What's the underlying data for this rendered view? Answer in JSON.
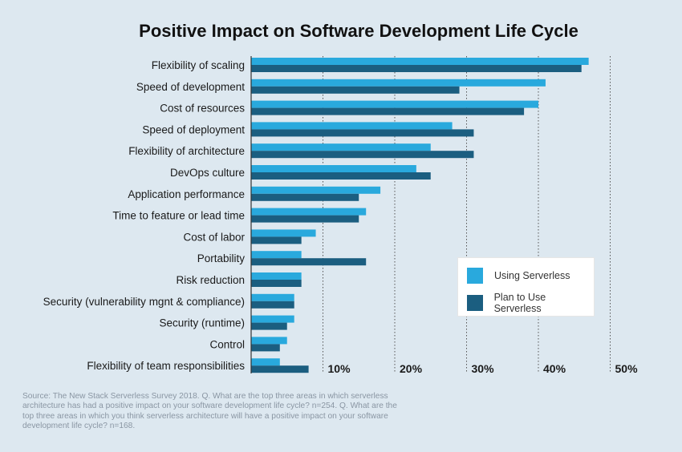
{
  "title": "Positive Impact on Software Development Life Cycle",
  "colors": {
    "using": "#29a9dd",
    "plan": "#1b5e80",
    "axis": "#333333",
    "grid": "#555555"
  },
  "legend": [
    {
      "label": "Using Serverless",
      "color": "#29a9dd"
    },
    {
      "label": "Plan to Use Serverless",
      "color": "#1b5e80"
    }
  ],
  "source": "Source: The New Stack Serverless Survey 2018. Q. What are the top three areas in which serverless architecture has had a positive impact on your software development life cycle? n=254. Q. What are the top three areas in which you think serverless architecture will have a positive impact on your software development life cycle? n=168.",
  "chart_data": {
    "type": "bar",
    "orientation": "horizontal",
    "title": "Positive Impact on Software Development Life Cycle",
    "xlim": [
      0,
      50
    ],
    "ticks": [
      10,
      20,
      30,
      40,
      50
    ],
    "tick_labels": [
      "10%",
      "20%",
      "30%",
      "40%",
      "50%"
    ],
    "grid": "vertical dotted",
    "legend_position": "right",
    "categories": [
      "Flexibility of scaling",
      "Speed of development",
      "Cost of resources",
      "Speed of deployment",
      "Flexibility of architecture",
      "DevOps culture",
      "Application performance",
      "Time to feature or lead time",
      "Cost of labor",
      "Portability",
      "Risk reduction",
      "Security (vulnerability mgnt & compliance)",
      "Security (runtime)",
      "Control",
      "Flexibility of team responsibilities"
    ],
    "series": [
      {
        "name": "Using Serverless",
        "values": [
          47,
          41,
          40,
          28,
          25,
          23,
          18,
          16,
          9,
          7,
          7,
          6,
          6,
          5,
          4
        ]
      },
      {
        "name": "Plan to Use Serverless",
        "values": [
          46,
          29,
          38,
          31,
          31,
          25,
          15,
          15,
          7,
          16,
          7,
          6,
          5,
          4,
          8
        ]
      }
    ]
  }
}
